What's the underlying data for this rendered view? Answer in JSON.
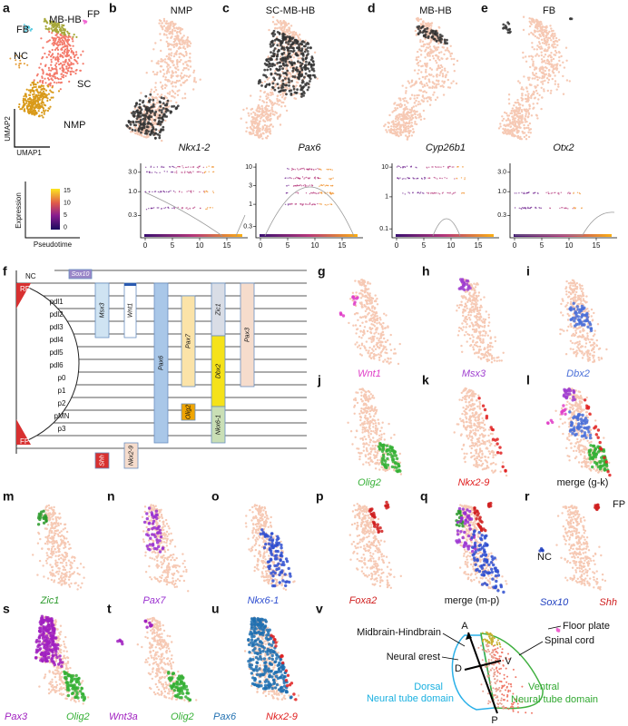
{
  "letters": [
    "a",
    "b",
    "c",
    "d",
    "e",
    "f",
    "g",
    "h",
    "i",
    "j",
    "k",
    "l",
    "m",
    "n",
    "o",
    "p",
    "q",
    "r",
    "s",
    "t",
    "u",
    "v"
  ],
  "umap_a": {
    "labels": [
      "FB",
      "MB-HB",
      "FP",
      "NC",
      "SC",
      "NMP"
    ],
    "axes": [
      "UMAP2",
      "UMAP1"
    ]
  },
  "colorbar": {
    "title": "Expression",
    "xlabel": "Pseudotime",
    "ticks": [
      "15",
      "10",
      "5",
      "0"
    ]
  },
  "top_titles": [
    "NMP",
    "SC-MB-HB",
    "MB-HB",
    "FB"
  ],
  "trend_plots": [
    {
      "gene": "Nkx1-2",
      "yticks": [
        "3.0",
        "1.0",
        "0.3"
      ],
      "xticks": [
        "0",
        "5",
        "10",
        "15"
      ]
    },
    {
      "gene": "Pax6",
      "yticks": [
        "10",
        "3",
        "1",
        "0.3"
      ],
      "xticks": [
        "0",
        "5",
        "10",
        "15"
      ]
    },
    {
      "gene": "Cyp26b1",
      "yticks": [
        "10",
        "1",
        "0.1"
      ],
      "xticks": [
        "0",
        "5",
        "10",
        "15"
      ]
    },
    {
      "gene": "Otx2",
      "yticks": [
        "3.0",
        "1.0",
        "0.3"
      ],
      "xticks": [
        "0",
        "5",
        "10",
        "15"
      ]
    }
  ],
  "f": {
    "domains": [
      "NC",
      "RP",
      "pdl1",
      "pdl2",
      "pdl3",
      "pdl4",
      "pdl5",
      "pdl6",
      "p0",
      "p1",
      "p2",
      "pMN",
      "p3",
      "FP"
    ],
    "genes": [
      "Sox10",
      "Msx3",
      "Wnt1",
      "Pax6",
      "Pax7",
      "Zic1",
      "Pax3",
      "Dbx2",
      "Olig2",
      "Nkx6-1",
      "Shh",
      "Nkx2-9"
    ]
  },
  "feature_panels": [
    {
      "labels": [
        "Wnt1"
      ]
    },
    {
      "labels": [
        "Msx3"
      ]
    },
    {
      "labels": [
        "Dbx2"
      ]
    },
    {
      "labels": [
        "Olig2"
      ]
    },
    {
      "labels": [
        "Nkx2-9"
      ]
    },
    {
      "labels": [
        "merge (g-k)"
      ]
    },
    {
      "labels": [
        "Zic1"
      ]
    },
    {
      "labels": [
        "Pax7"
      ]
    },
    {
      "labels": [
        "Nkx6-1"
      ]
    },
    {
      "labels": [
        "Foxa2"
      ]
    },
    {
      "labels": [
        "merge (m-p)"
      ]
    },
    {
      "labels": [
        "Sox10",
        "Shh",
        "FP",
        "NC"
      ]
    },
    {
      "labels": [
        "Pax3",
        "Olig2"
      ]
    },
    {
      "labels": [
        "Wnt3a",
        "Olig2"
      ]
    },
    {
      "labels": [
        "Pax6",
        "Nkx2-9"
      ]
    }
  ],
  "v": {
    "labels": [
      "Midbrain-Hindbrain",
      "Floor plate",
      "Spinal cord",
      "Neural crest",
      "A",
      "D",
      "V",
      "P",
      "Dorsal",
      "Neural tube domain",
      "Ventral",
      "Neural tube domain"
    ]
  }
}
